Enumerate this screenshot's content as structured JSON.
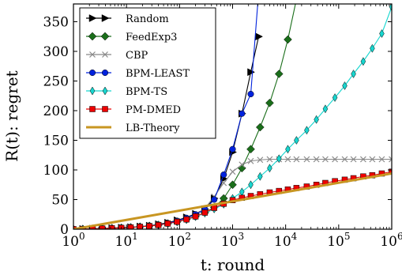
{
  "chart_data": {
    "type": "line",
    "xlabel": "t: round",
    "ylabel": "R(t): regret",
    "xscale": "log",
    "xlim": [
      1,
      1000000
    ],
    "ylim": [
      0,
      380
    ],
    "x_ticks": [
      {
        "value": 1,
        "base": "10",
        "exp": "0"
      },
      {
        "value": 10,
        "base": "10",
        "exp": "1"
      },
      {
        "value": 100,
        "base": "10",
        "exp": "2"
      },
      {
        "value": 1000,
        "base": "10",
        "exp": "3"
      },
      {
        "value": 10000,
        "base": "10",
        "exp": "4"
      },
      {
        "value": 100000,
        "base": "10",
        "exp": "5"
      },
      {
        "value": 1000000,
        "base": "10",
        "exp": "6"
      }
    ],
    "y_ticks": [
      0,
      50,
      100,
      150,
      200,
      250,
      300,
      350
    ],
    "grid": false,
    "legend_position": "top-left",
    "series": [
      {
        "name": "Random",
        "color": "#000000",
        "marker": "triangle-right",
        "points": [
          [
            1,
            0
          ],
          [
            1.5,
            0.4
          ],
          [
            2.3,
            0.9
          ],
          [
            3.5,
            1.3
          ],
          [
            5.3,
            1.9
          ],
          [
            8,
            2.7
          ],
          [
            12,
            3.5
          ],
          [
            18,
            4.6
          ],
          [
            27,
            6
          ],
          [
            40,
            8.5
          ],
          [
            60,
            11
          ],
          [
            90,
            15
          ],
          [
            135,
            20
          ],
          [
            200,
            26
          ],
          [
            300,
            34
          ],
          [
            450,
            52
          ],
          [
            680,
            85
          ],
          [
            1000,
            130
          ],
          [
            1500,
            195
          ],
          [
            2200,
            265
          ],
          [
            3100,
            325
          ]
        ]
      },
      {
        "name": "FeedExp3",
        "color": "#1a6e1a",
        "marker": "diamond",
        "points": [
          [
            1,
            0
          ],
          [
            1.5,
            0.4
          ],
          [
            2.3,
            0.8
          ],
          [
            3.5,
            1.2
          ],
          [
            5.3,
            1.7
          ],
          [
            8,
            2.4
          ],
          [
            12,
            3.2
          ],
          [
            18,
            4.3
          ],
          [
            27,
            5.6
          ],
          [
            40,
            7.3
          ],
          [
            60,
            9.6
          ],
          [
            90,
            12.5
          ],
          [
            135,
            16.5
          ],
          [
            200,
            21.5
          ],
          [
            300,
            28
          ],
          [
            450,
            37
          ],
          [
            680,
            52
          ],
          [
            1000,
            75
          ],
          [
            1500,
            103
          ],
          [
            2200,
            135
          ],
          [
            3300,
            172
          ],
          [
            5000,
            213
          ],
          [
            7500,
            262
          ],
          [
            11000,
            320
          ],
          [
            16000,
            388
          ]
        ]
      },
      {
        "name": "CBP",
        "color": "#888888",
        "marker": "x",
        "points": [
          [
            1,
            0
          ],
          [
            1.5,
            0.4
          ],
          [
            2.3,
            0.8
          ],
          [
            3.5,
            1.2
          ],
          [
            5.3,
            1.7
          ],
          [
            8,
            2.4
          ],
          [
            12,
            3.2
          ],
          [
            18,
            4.3
          ],
          [
            27,
            5.7
          ],
          [
            40,
            7.6
          ],
          [
            60,
            10
          ],
          [
            90,
            13.5
          ],
          [
            135,
            18
          ],
          [
            200,
            24
          ],
          [
            300,
            35
          ],
          [
            450,
            55
          ],
          [
            680,
            78
          ],
          [
            1000,
            97
          ],
          [
            1500,
            109
          ],
          [
            2200,
            115
          ],
          [
            3300,
            117
          ],
          [
            5000,
            118
          ],
          [
            7500,
            118
          ],
          [
            11000,
            118
          ],
          [
            16000,
            118
          ],
          [
            25000,
            118
          ],
          [
            38000,
            118
          ],
          [
            56000,
            118
          ],
          [
            85000,
            118
          ],
          [
            130000,
            118
          ],
          [
            190000,
            118
          ],
          [
            290000,
            118
          ],
          [
            430000,
            118
          ],
          [
            650000,
            118
          ],
          [
            1000000,
            118
          ]
        ]
      },
      {
        "name": "BPM-LEAST",
        "color": "#0022dd",
        "marker": "circle",
        "points": [
          [
            1,
            0
          ],
          [
            1.5,
            0.3
          ],
          [
            2.3,
            0.7
          ],
          [
            3.5,
            1.1
          ],
          [
            5.3,
            1.6
          ],
          [
            8,
            2.2
          ],
          [
            12,
            3
          ],
          [
            18,
            4
          ],
          [
            27,
            5.4
          ],
          [
            40,
            7.3
          ],
          [
            60,
            10
          ],
          [
            90,
            14
          ],
          [
            135,
            19
          ],
          [
            200,
            25
          ],
          [
            300,
            33
          ],
          [
            450,
            50
          ],
          [
            680,
            92
          ],
          [
            1000,
            135
          ],
          [
            1500,
            195
          ],
          [
            2200,
            228
          ],
          [
            3100,
            400
          ]
        ]
      },
      {
        "name": "BPM-TS",
        "color": "#17d6cf",
        "marker": "thin-diamond",
        "points": [
          [
            1,
            0
          ],
          [
            1.5,
            0.3
          ],
          [
            2.3,
            0.7
          ],
          [
            3.5,
            1.1
          ],
          [
            5.3,
            1.6
          ],
          [
            8,
            2.2
          ],
          [
            12,
            3
          ],
          [
            18,
            4
          ],
          [
            27,
            5.3
          ],
          [
            40,
            7
          ],
          [
            60,
            9.3
          ],
          [
            90,
            12.3
          ],
          [
            135,
            16
          ],
          [
            200,
            21
          ],
          [
            300,
            27
          ],
          [
            450,
            34
          ],
          [
            680,
            42
          ],
          [
            1000,
            52
          ],
          [
            1500,
            63
          ],
          [
            2200,
            75
          ],
          [
            3300,
            89
          ],
          [
            5000,
            103
          ],
          [
            7500,
            119
          ],
          [
            11000,
            135
          ],
          [
            16000,
            150
          ],
          [
            25000,
            167
          ],
          [
            38000,
            185
          ],
          [
            56000,
            203
          ],
          [
            85000,
            222
          ],
          [
            130000,
            242
          ],
          [
            190000,
            262
          ],
          [
            290000,
            283
          ],
          [
            430000,
            305
          ],
          [
            650000,
            330
          ],
          [
            1000000,
            375
          ]
        ]
      },
      {
        "name": "PM-DMED",
        "color": "#ee0000",
        "marker": "square",
        "points": [
          [
            1,
            0
          ],
          [
            1.5,
            0.3
          ],
          [
            2.3,
            0.7
          ],
          [
            3.5,
            1.1
          ],
          [
            5.3,
            1.6
          ],
          [
            8,
            2.2
          ],
          [
            12,
            3
          ],
          [
            18,
            4
          ],
          [
            27,
            5.2
          ],
          [
            40,
            7
          ],
          [
            60,
            9.5
          ],
          [
            90,
            12.5
          ],
          [
            135,
            16.5
          ],
          [
            200,
            21.5
          ],
          [
            300,
            28
          ],
          [
            450,
            36
          ],
          [
            680,
            43
          ],
          [
            1000,
            49
          ],
          [
            1500,
            53
          ],
          [
            2200,
            56
          ],
          [
            3300,
            59
          ],
          [
            5000,
            62
          ],
          [
            7500,
            64.5
          ],
          [
            11000,
            67
          ],
          [
            16000,
            69.5
          ],
          [
            25000,
            72
          ],
          [
            38000,
            75
          ],
          [
            56000,
            78
          ],
          [
            85000,
            81
          ],
          [
            130000,
            83.5
          ],
          [
            190000,
            86
          ],
          [
            290000,
            89
          ],
          [
            430000,
            91
          ],
          [
            650000,
            94
          ],
          [
            1000000,
            97
          ]
        ]
      },
      {
        "name": "LB-Theory",
        "color": "#c89622",
        "marker": "none",
        "points": [
          [
            1,
            0
          ],
          [
            1000000,
            94
          ]
        ]
      }
    ]
  }
}
